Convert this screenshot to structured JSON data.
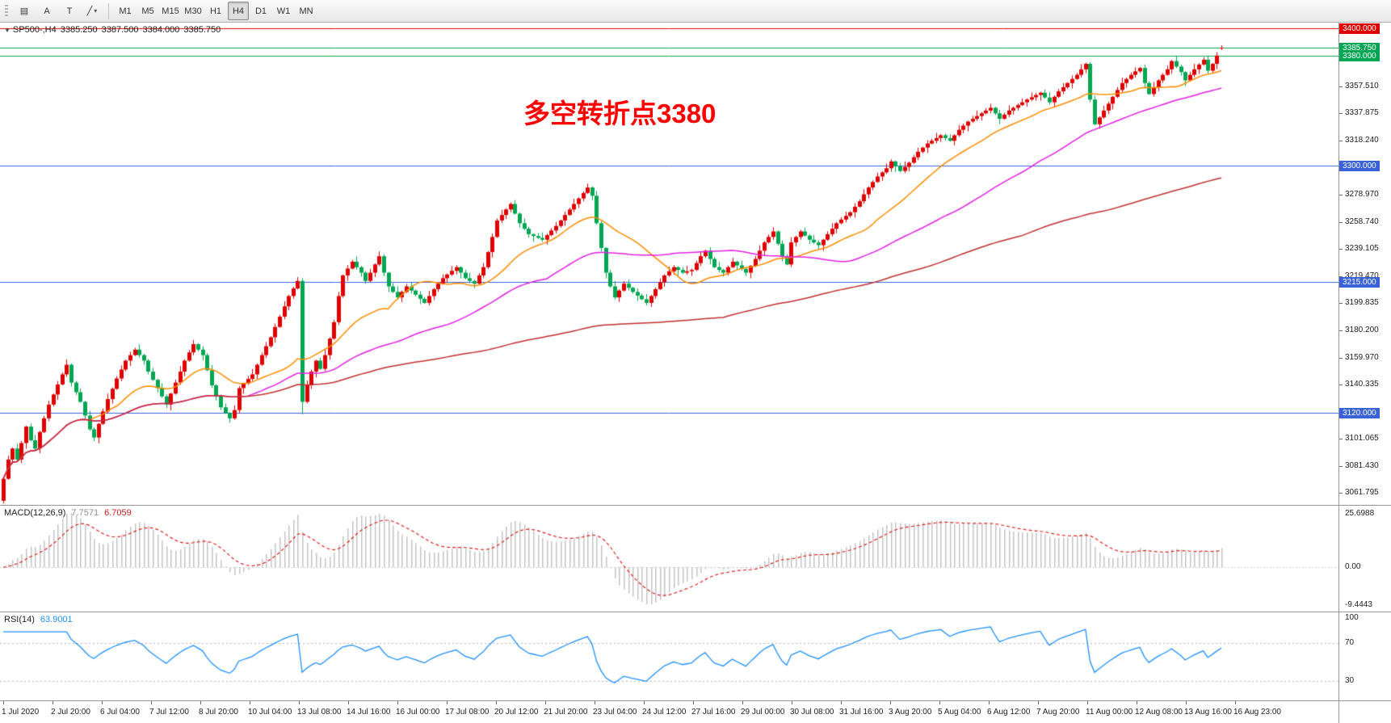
{
  "toolbar": {
    "tool_buttons": [
      {
        "name": "charts-button",
        "glyph": "▤"
      },
      {
        "name": "text-a-button",
        "glyph": "A"
      },
      {
        "name": "text-t-button",
        "glyph": "T"
      },
      {
        "name": "line-tools-button",
        "glyph": "╱",
        "caret": "▾"
      }
    ],
    "timeframes": [
      {
        "label": "M1",
        "active": false
      },
      {
        "label": "M5",
        "active": false
      },
      {
        "label": "M15",
        "active": false
      },
      {
        "label": "M30",
        "active": false
      },
      {
        "label": "H1",
        "active": false
      },
      {
        "label": "H4",
        "active": true
      },
      {
        "label": "D1",
        "active": false
      },
      {
        "label": "W1",
        "active": false
      },
      {
        "label": "MN",
        "active": false
      }
    ]
  },
  "main_panel": {
    "header": {
      "marker": "▼",
      "symbol_text": "SP500-,H4",
      "open": "3385.250",
      "high": "3387.500",
      "low": "3384.000",
      "close": "3385.750"
    },
    "annotation": {
      "text": "多空转折点3380",
      "color": "#ff0000"
    }
  },
  "macd_panel": {
    "name": "MACD(12,26,9)",
    "value_main": "7.7571",
    "value_signal": "6.7059",
    "axis_labels": {
      "top": "25.6988",
      "zero": "0.00",
      "bottom": "-9.4443"
    }
  },
  "rsi_panel": {
    "name": "RSI(14)",
    "value": "63.9001",
    "axis_labels": [
      {
        "text": "100",
        "v": 100
      },
      {
        "text": "70",
        "v": 70
      },
      {
        "text": "30",
        "v": 30
      }
    ],
    "levels": [
      70,
      30
    ]
  },
  "chart_data": {
    "type": "candlestick",
    "symbol": "SP500-",
    "timeframe": "H4",
    "ohlc_current": {
      "open": 3385.25,
      "high": 3387.5,
      "low": 3384.0,
      "close": 3385.75
    },
    "ylim": [
      3053,
      3404
    ],
    "num_candles": 270,
    "first_open": 3056,
    "close_anchors": [
      [
        0,
        3072
      ],
      [
        1,
        3086
      ],
      [
        2,
        3094
      ],
      [
        3,
        3086
      ],
      [
        4,
        3098
      ],
      [
        5,
        3110
      ],
      [
        6,
        3100
      ],
      [
        7,
        3094
      ],
      [
        8,
        3106
      ],
      [
        10,
        3126
      ],
      [
        13,
        3148
      ],
      [
        14,
        3155
      ],
      [
        15,
        3142
      ],
      [
        17,
        3128
      ],
      [
        19,
        3108
      ],
      [
        20,
        3102
      ],
      [
        21,
        3112
      ],
      [
        23,
        3130
      ],
      [
        25,
        3145
      ],
      [
        27,
        3158
      ],
      [
        29,
        3166
      ],
      [
        31,
        3158
      ],
      [
        32,
        3150
      ],
      [
        35,
        3132
      ],
      [
        36,
        3126
      ],
      [
        38,
        3142
      ],
      [
        40,
        3158
      ],
      [
        42,
        3170
      ],
      [
        44,
        3162
      ],
      [
        46,
        3140
      ],
      [
        48,
        3124
      ],
      [
        50,
        3116
      ],
      [
        51,
        3122
      ],
      [
        52,
        3138
      ],
      [
        55,
        3148
      ],
      [
        57,
        3162
      ],
      [
        59,
        3175
      ],
      [
        61,
        3190
      ],
      [
        63,
        3205
      ],
      [
        65,
        3216
      ],
      [
        66,
        3128
      ],
      [
        67,
        3140
      ],
      [
        68,
        3150
      ],
      [
        69,
        3158
      ],
      [
        70,
        3152
      ],
      [
        71,
        3162
      ],
      [
        73,
        3186
      ],
      [
        74,
        3205
      ],
      [
        75,
        3220
      ],
      [
        77,
        3230
      ],
      [
        79,
        3222
      ],
      [
        80,
        3216
      ],
      [
        82,
        3228
      ],
      [
        83,
        3234
      ],
      [
        84,
        3222
      ],
      [
        85,
        3212
      ],
      [
        87,
        3204
      ],
      [
        89,
        3212
      ],
      [
        91,
        3206
      ],
      [
        93,
        3200
      ],
      [
        95,
        3210
      ],
      [
        97,
        3218
      ],
      [
        100,
        3226
      ],
      [
        102,
        3218
      ],
      [
        104,
        3214
      ],
      [
        106,
        3226
      ],
      [
        108,
        3248
      ],
      [
        109,
        3260
      ],
      [
        111,
        3268
      ],
      [
        112,
        3272
      ],
      [
        114,
        3258
      ],
      [
        116,
        3250
      ],
      [
        119,
        3246
      ],
      [
        122,
        3256
      ],
      [
        124,
        3264
      ],
      [
        126,
        3272
      ],
      [
        128,
        3280
      ],
      [
        129,
        3284
      ],
      [
        130,
        3278
      ],
      [
        131,
        3258
      ],
      [
        132,
        3240
      ],
      [
        133,
        3222
      ],
      [
        134,
        3212
      ],
      [
        135,
        3204
      ],
      [
        137,
        3214
      ],
      [
        139,
        3208
      ],
      [
        142,
        3200
      ],
      [
        144,
        3210
      ],
      [
        146,
        3220
      ],
      [
        148,
        3226
      ],
      [
        150,
        3222
      ],
      [
        152,
        3224
      ],
      [
        154,
        3234
      ],
      [
        155,
        3238
      ],
      [
        157,
        3226
      ],
      [
        159,
        3222
      ],
      [
        161,
        3230
      ],
      [
        164,
        3222
      ],
      [
        166,
        3232
      ],
      [
        168,
        3244
      ],
      [
        170,
        3252
      ],
      [
        172,
        3234
      ],
      [
        173,
        3228
      ],
      [
        174,
        3244
      ],
      [
        176,
        3252
      ],
      [
        178,
        3246
      ],
      [
        180,
        3242
      ],
      [
        182,
        3250
      ],
      [
        184,
        3258
      ],
      [
        187,
        3266
      ],
      [
        189,
        3274
      ],
      [
        191,
        3284
      ],
      [
        193,
        3292
      ],
      [
        195,
        3298
      ],
      [
        196,
        3303
      ],
      [
        198,
        3296
      ],
      [
        200,
        3302
      ],
      [
        202,
        3310
      ],
      [
        204,
        3316
      ],
      [
        207,
        3322
      ],
      [
        209,
        3318
      ],
      [
        211,
        3326
      ],
      [
        213,
        3332
      ],
      [
        215,
        3336
      ],
      [
        217,
        3340
      ],
      [
        218,
        3342
      ],
      [
        220,
        3334
      ],
      [
        222,
        3340
      ],
      [
        224,
        3344
      ],
      [
        226,
        3348
      ],
      [
        229,
        3353
      ],
      [
        231,
        3346
      ],
      [
        233,
        3354
      ],
      [
        235,
        3360
      ],
      [
        237,
        3366
      ],
      [
        239,
        3374
      ],
      [
        240,
        3348
      ],
      [
        241,
        3330
      ],
      [
        243,
        3340
      ],
      [
        245,
        3350
      ],
      [
        247,
        3360
      ],
      [
        249,
        3366
      ],
      [
        251,
        3371
      ],
      [
        252,
        3360
      ],
      [
        253,
        3352
      ],
      [
        255,
        3362
      ],
      [
        257,
        3370
      ],
      [
        258,
        3376
      ],
      [
        260,
        3368
      ],
      [
        261,
        3362
      ],
      [
        263,
        3370
      ],
      [
        265,
        3377
      ],
      [
        266,
        3369
      ],
      [
        267,
        3374
      ],
      [
        268,
        3380
      ],
      [
        269,
        3385.75
      ]
    ],
    "wiggle_up": [
      1.2,
      2.8,
      0.8,
      3.5,
      1.5,
      0.6,
      2.2,
      4.0,
      1.0,
      1.8,
      3.0,
      0.7,
      2.5,
      1.4,
      3.8,
      0.9
    ],
    "wiggle_down": [
      2.0,
      0.7,
      3.2,
      1.1,
      2.6,
      4.2,
      0.9,
      1.6,
      3.4,
      0.8,
      2.1,
      1.3,
      3.9,
      0.6,
      1.9,
      2.9
    ],
    "wick_overrides": [
      [
        66,
        3218,
        3119
      ]
    ],
    "candle_colors": {
      "up": "#e00000",
      "down": "#00a651"
    },
    "moving_averages": [
      {
        "period": 20,
        "color": "#ff8c00"
      },
      {
        "period": 55,
        "color": "#e320e3"
      },
      {
        "period": 160,
        "color": "#c03030"
      }
    ],
    "hlines": [
      {
        "price": 3400.0,
        "label": "3400.000",
        "color": "#e00000"
      },
      {
        "price": 3385.75,
        "label": "3385.750",
        "color": "#00a651"
      },
      {
        "price": 3380.0,
        "label": "3380.000",
        "color": "#00a651"
      },
      {
        "price": 3300.0,
        "label": "3300.000",
        "color": "#3a62d8"
      },
      {
        "price": 3215.0,
        "label": "3215.000",
        "color": "#3a62d8"
      },
      {
        "price": 3120.0,
        "label": "3120.000",
        "color": "#3a62d8"
      }
    ],
    "price_ticks": [
      "3357.510",
      "3337.875",
      "3318.240",
      "3278.970",
      "3258.740",
      "3239.105",
      "3219.470",
      "3199.835",
      "3180.200",
      "3159.970",
      "3140.335",
      "3101.065",
      "3081.430",
      "3061.795"
    ],
    "time_labels": [
      "1 Jul 2020",
      "2 Jul 20:00",
      "6 Jul 04:00",
      "7 Jul 12:00",
      "8 Jul 20:00",
      "10 Jul 04:00",
      "13 Jul 08:00",
      "14 Jul 16:00",
      "16 Jul 00:00",
      "17 Jul 08:00",
      "20 Jul 12:00",
      "21 Jul 20:00",
      "23 Jul 04:00",
      "24 Jul 12:00",
      "27 Jul 16:00",
      "29 Jul 00:00",
      "30 Jul 08:00",
      "31 Jul 16:00",
      "3 Aug 20:00",
      "5 Aug 04:00",
      "6 Aug 12:00",
      "7 Aug 20:00",
      "11 Aug 00:00",
      "12 Aug 08:00",
      "13 Aug 16:00",
      "16 Aug 23:00"
    ],
    "macd": {
      "fast": 12,
      "slow": 26,
      "signal": 9,
      "hist_color": "#c4c4c4",
      "signal_color": "#dd2222"
    },
    "rsi": {
      "period": 14,
      "color": "#1e90ff",
      "level_color": "#b5b5b5"
    }
  }
}
